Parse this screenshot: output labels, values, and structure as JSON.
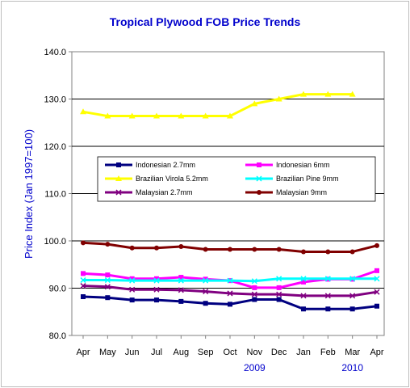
{
  "chart_data": {
    "type": "line",
    "title": "Tropical Plywood FOB Price Trends",
    "xlabel": "",
    "ylabel": "Price Index (Jan 1997=100)",
    "categories": [
      "Apr",
      "May",
      "Jun",
      "Jul",
      "Aug",
      "Sep",
      "Oct",
      "Nov",
      "Dec",
      "Jan",
      "Feb",
      "Mar",
      "Apr"
    ],
    "year_labels": [
      {
        "text": "2009",
        "category": "Nov"
      },
      {
        "text": "2010",
        "category": "Mar"
      }
    ],
    "ylim": [
      80,
      140
    ],
    "yticks": [
      "80.0",
      "90.0",
      "100.0",
      "110.0",
      "120.0",
      "130.0",
      "140.0"
    ],
    "grid": "horizontal",
    "legend_position": "center-left",
    "series": [
      {
        "name": "Indonesian 2.7mm",
        "color": "#000080",
        "marker": "square",
        "values": [
          88.2,
          88.0,
          87.5,
          87.5,
          87.2,
          86.8,
          86.6,
          87.6,
          87.6,
          85.6,
          85.6,
          85.6,
          86.2
        ]
      },
      {
        "name": "Indonesian 6mm",
        "color": "#ff00ff",
        "marker": "square",
        "values": [
          93.1,
          92.8,
          92.0,
          92.0,
          92.3,
          91.9,
          91.6,
          90.1,
          90.1,
          91.3,
          91.9,
          91.9,
          93.7
        ]
      },
      {
        "name": "Brazilian Virola 5.2mm",
        "color": "#ffff00",
        "marker": "triangle",
        "values": [
          127.3,
          126.4,
          126.4,
          126.4,
          126.4,
          126.4,
          126.4,
          129.0,
          130.0,
          131.0,
          131.0,
          131.0,
          null
        ]
      },
      {
        "name": "Brazilian Pine 9mm",
        "color": "#00ffff",
        "marker": "x",
        "values": [
          91.7,
          91.7,
          91.6,
          91.6,
          91.6,
          91.6,
          91.6,
          91.5,
          92.0,
          92.0,
          92.0,
          92.0,
          92.0
        ]
      },
      {
        "name": "Malaysian 2.7mm",
        "color": "#800080",
        "marker": "x",
        "values": [
          90.5,
          90.3,
          89.7,
          89.7,
          89.6,
          89.3,
          88.9,
          88.7,
          88.7,
          88.4,
          88.4,
          88.4,
          89.2
        ]
      },
      {
        "name": "Malaysian 9mm",
        "color": "#800000",
        "marker": "circle",
        "values": [
          99.6,
          99.3,
          98.5,
          98.5,
          98.8,
          98.2,
          98.2,
          98.2,
          98.2,
          97.7,
          97.7,
          97.7,
          99.0
        ]
      }
    ]
  }
}
